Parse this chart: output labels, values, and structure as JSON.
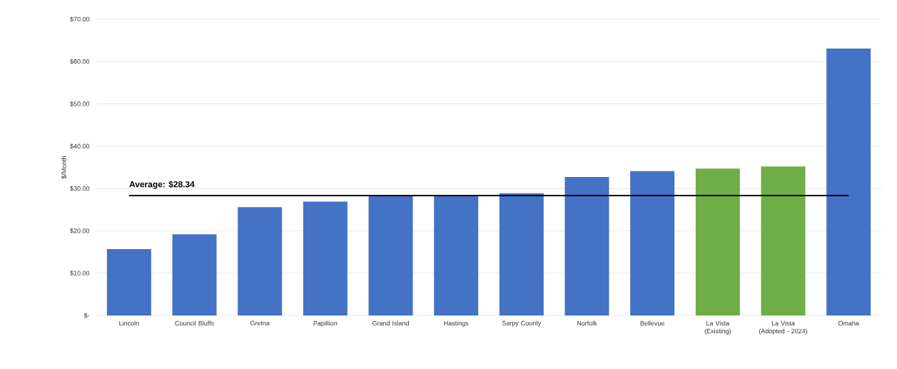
{
  "chart_data": {
    "type": "bar",
    "ylabel": "$/Month",
    "categories": [
      "Lincoln",
      "Council Bluffs",
      "Gretna",
      "Papillion",
      "Grand Island",
      "Hastings",
      "Sarpy County",
      "Norfolk",
      "Bellevue",
      "La Vista (Existing)",
      "La Vista (Adopted - 2024)",
      "Omaha"
    ],
    "values": [
      15.7,
      19.2,
      25.6,
      26.9,
      28.2,
      28.3,
      28.9,
      32.7,
      34.1,
      34.7,
      35.2,
      63.1
    ],
    "colors": [
      "#4472c4",
      "#4472c4",
      "#4472c4",
      "#4472c4",
      "#4472c4",
      "#4472c4",
      "#4472c4",
      "#4472c4",
      "#4472c4",
      "#70ad47",
      "#70ad47",
      "#4472c4"
    ],
    "ylim": [
      0,
      70
    ],
    "yticks": [
      {
        "value": 0,
        "label": "$-"
      },
      {
        "value": 10,
        "label": "$10.00"
      },
      {
        "value": 20,
        "label": "$20.00"
      },
      {
        "value": 30,
        "label": "$30.00"
      },
      {
        "value": 40,
        "label": "$40.00"
      },
      {
        "value": 50,
        "label": "$50.00"
      },
      {
        "value": 60,
        "label": "$60.00"
      },
      {
        "value": 70,
        "label": "$70.00"
      }
    ],
    "grid": "y",
    "ref_lines": [
      {
        "axis": "y",
        "value": 28.34,
        "label": "Average:  $28.34",
        "color": "#000000"
      }
    ]
  }
}
